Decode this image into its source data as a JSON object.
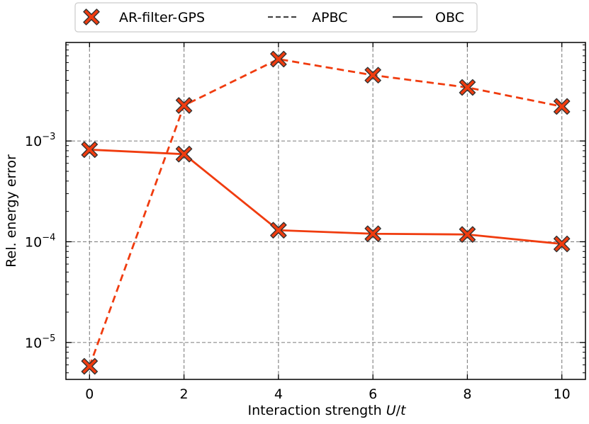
{
  "chart_data": {
    "type": "line",
    "xlabel": "Interaction strength U/t",
    "xlabel_parts": {
      "prefix": "Interaction strength ",
      "italic1": "U",
      "sep": "/",
      "italic2": "t"
    },
    "ylabel": "Rel. energy error",
    "y_scale": "log",
    "ylim": [
      4.3e-06,
      0.0095
    ],
    "xlim": [
      -0.5,
      10.5
    ],
    "x_ticks": [
      0,
      2,
      4,
      6,
      8,
      10
    ],
    "x_tick_labels": [
      "0",
      "2",
      "4",
      "6",
      "8",
      "10"
    ],
    "y_ticks": [
      {
        "value": 1e-05,
        "base": "10",
        "exp": "−5"
      },
      {
        "value": 0.0001,
        "base": "10",
        "exp": "−4"
      },
      {
        "value": 0.001,
        "base": "10",
        "exp": "−3"
      }
    ],
    "grid": true,
    "legend_position": "top, outside plot",
    "legend": [
      {
        "label": "AR-filter-GPS",
        "type": "marker"
      },
      {
        "label": "APBC",
        "type": "dashed-line"
      },
      {
        "label": "OBC",
        "type": "solid-line"
      }
    ],
    "x": [
      0,
      2,
      4,
      6,
      8,
      10
    ],
    "series": [
      {
        "name": "APBC",
        "style": "dashed",
        "values": [
          5.8e-06,
          0.00225,
          0.0065,
          0.0045,
          0.0034,
          0.0022
        ]
      },
      {
        "name": "OBC",
        "style": "solid",
        "values": [
          0.00082,
          0.00074,
          0.00013,
          0.00012,
          0.000118,
          9.5e-05
        ]
      }
    ],
    "colors": {
      "line": "#f03c0f",
      "marker_fill": "#f03c0f",
      "marker_edge": "#333333",
      "grid": "#8a8a8a"
    }
  }
}
